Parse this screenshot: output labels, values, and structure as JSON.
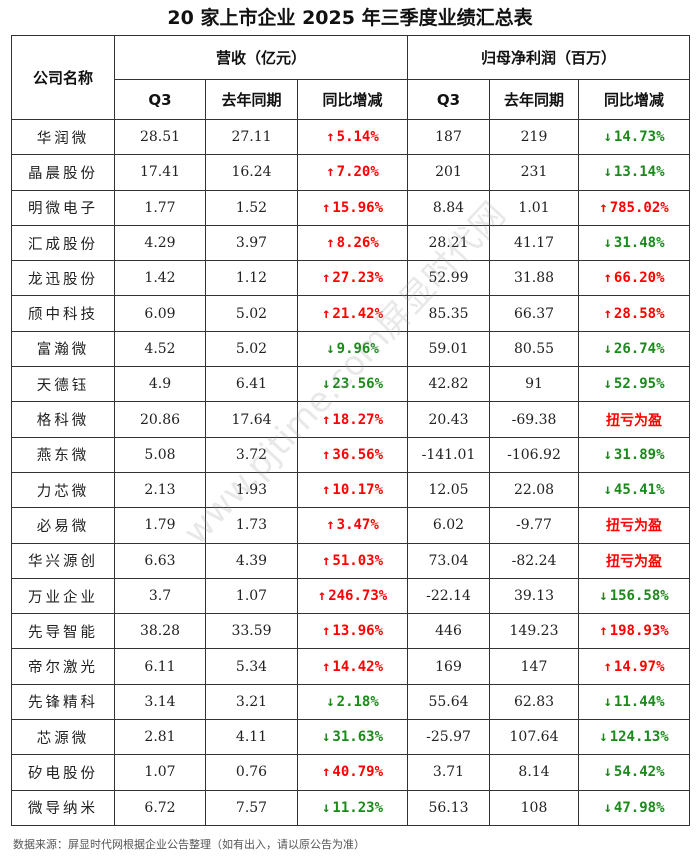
{
  "title": "20 家上市企业 2025 年三季度业绩汇总表",
  "headers": {
    "company": "公司名称",
    "revenue_group": "营收（亿元）",
    "profit_group": "归母净利润（百万）",
    "q3": "Q3",
    "last_year": "去年同期",
    "yoy": "同比增减"
  },
  "colors": {
    "increase": "#ff0000",
    "decrease": "#1a8a1a"
  },
  "rows": [
    {
      "name": "华润微",
      "rev_q3": "28.51",
      "rev_ly": "27.11",
      "rev_yoy": "5.14%",
      "rev_dir": "up",
      "np_q3": "187",
      "np_ly": "219",
      "np_yoy": "14.73%",
      "np_dir": "down"
    },
    {
      "name": "晶晨股份",
      "rev_q3": "17.41",
      "rev_ly": "16.24",
      "rev_yoy": "7.20%",
      "rev_dir": "up",
      "np_q3": "201",
      "np_ly": "231",
      "np_yoy": "13.14%",
      "np_dir": "down"
    },
    {
      "name": "明微电子",
      "rev_q3": "1.77",
      "rev_ly": "1.52",
      "rev_yoy": "15.96%",
      "rev_dir": "up",
      "np_q3": "8.84",
      "np_ly": "1.01",
      "np_yoy": "785.02%",
      "np_dir": "up"
    },
    {
      "name": "汇成股份",
      "rev_q3": "4.29",
      "rev_ly": "3.97",
      "rev_yoy": "8.26%",
      "rev_dir": "up",
      "np_q3": "28.21",
      "np_ly": "41.17",
      "np_yoy": "31.48%",
      "np_dir": "down"
    },
    {
      "name": "龙迅股份",
      "rev_q3": "1.42",
      "rev_ly": "1.12",
      "rev_yoy": "27.23%",
      "rev_dir": "up",
      "np_q3": "52.99",
      "np_ly": "31.88",
      "np_yoy": "66.20%",
      "np_dir": "up"
    },
    {
      "name": "颀中科技",
      "rev_q3": "6.09",
      "rev_ly": "5.02",
      "rev_yoy": "21.42%",
      "rev_dir": "up",
      "np_q3": "85.35",
      "np_ly": "66.37",
      "np_yoy": "28.58%",
      "np_dir": "up"
    },
    {
      "name": "富瀚微",
      "rev_q3": "4.52",
      "rev_ly": "5.02",
      "rev_yoy": "9.96%",
      "rev_dir": "down",
      "np_q3": "59.01",
      "np_ly": "80.55",
      "np_yoy": "26.74%",
      "np_dir": "down"
    },
    {
      "name": "天德钰",
      "rev_q3": "4.9",
      "rev_ly": "6.41",
      "rev_yoy": "23.56%",
      "rev_dir": "down",
      "np_q3": "42.82",
      "np_ly": "91",
      "np_yoy": "52.95%",
      "np_dir": "down"
    },
    {
      "name": "格科微",
      "rev_q3": "20.86",
      "rev_ly": "17.64",
      "rev_yoy": "18.27%",
      "rev_dir": "up",
      "np_q3": "20.43",
      "np_ly": "-69.38",
      "np_yoy": "扭亏为盈",
      "np_dir": "turn"
    },
    {
      "name": "燕东微",
      "rev_q3": "5.08",
      "rev_ly": "3.72",
      "rev_yoy": "36.56%",
      "rev_dir": "up",
      "np_q3": "-141.01",
      "np_ly": "-106.92",
      "np_yoy": "31.89%",
      "np_dir": "down"
    },
    {
      "name": "力芯微",
      "rev_q3": "2.13",
      "rev_ly": "1.93",
      "rev_yoy": "10.17%",
      "rev_dir": "up",
      "np_q3": "12.05",
      "np_ly": "22.08",
      "np_yoy": "45.41%",
      "np_dir": "down"
    },
    {
      "name": "必易微",
      "rev_q3": "1.79",
      "rev_ly": "1.73",
      "rev_yoy": "3.47%",
      "rev_dir": "up",
      "np_q3": "6.02",
      "np_ly": "-9.77",
      "np_yoy": "扭亏为盈",
      "np_dir": "turn"
    },
    {
      "name": "华兴源创",
      "rev_q3": "6.63",
      "rev_ly": "4.39",
      "rev_yoy": "51.03%",
      "rev_dir": "up",
      "np_q3": "73.04",
      "np_ly": "-82.24",
      "np_yoy": "扭亏为盈",
      "np_dir": "turn"
    },
    {
      "name": "万业企业",
      "rev_q3": "3.7",
      "rev_ly": "1.07",
      "rev_yoy": "246.73%",
      "rev_dir": "up",
      "np_q3": "-22.14",
      "np_ly": "39.13",
      "np_yoy": "156.58%",
      "np_dir": "down"
    },
    {
      "name": "先导智能",
      "rev_q3": "38.28",
      "rev_ly": "33.59",
      "rev_yoy": "13.96%",
      "rev_dir": "up",
      "np_q3": "446",
      "np_ly": "149.23",
      "np_yoy": "198.93%",
      "np_dir": "up"
    },
    {
      "name": "帝尔激光",
      "rev_q3": "6.11",
      "rev_ly": "5.34",
      "rev_yoy": "14.42%",
      "rev_dir": "up",
      "np_q3": "169",
      "np_ly": "147",
      "np_yoy": "14.97%",
      "np_dir": "up"
    },
    {
      "name": "先锋精科",
      "rev_q3": "3.14",
      "rev_ly": "3.21",
      "rev_yoy": "2.18%",
      "rev_dir": "down",
      "np_q3": "55.64",
      "np_ly": "62.83",
      "np_yoy": "11.44%",
      "np_dir": "down"
    },
    {
      "name": "芯源微",
      "rev_q3": "2.81",
      "rev_ly": "4.11",
      "rev_yoy": "31.63%",
      "rev_dir": "down",
      "np_q3": "-25.97",
      "np_ly": "107.64",
      "np_yoy": "124.13%",
      "np_dir": "down"
    },
    {
      "name": "矽电股份",
      "rev_q3": "1.07",
      "rev_ly": "0.76",
      "rev_yoy": "40.79%",
      "rev_dir": "up",
      "np_q3": "3.71",
      "np_ly": "8.14",
      "np_yoy": "54.42%",
      "np_dir": "down"
    },
    {
      "name": "微导纳米",
      "rev_q3": "6.72",
      "rev_ly": "7.57",
      "rev_yoy": "11.23%",
      "rev_dir": "down",
      "np_q3": "56.13",
      "np_ly": "108",
      "np_yoy": "47.98%",
      "np_dir": "down"
    }
  ],
  "arrows": {
    "up": "↑",
    "down": "↓"
  },
  "footnote": "数据来源：屏显时代网根据企业公告整理（如有出入，请以原公告为准）",
  "watermark": "www.pjtime.com屏显时代网"
}
